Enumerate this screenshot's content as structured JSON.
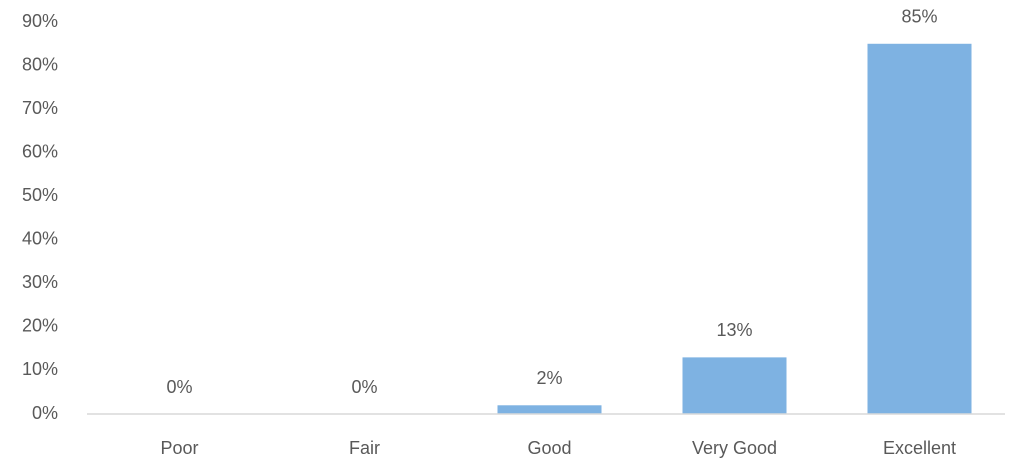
{
  "chart_data": {
    "type": "bar",
    "categories": [
      "Poor",
      "Fair",
      "Good",
      "Very Good",
      "Excellent"
    ],
    "values": [
      0,
      0,
      2,
      13,
      85
    ],
    "value_labels": [
      "0%",
      "0%",
      "2%",
      "13%",
      "85%"
    ],
    "color": "#7eb2e2",
    "ylim": [
      0,
      90
    ],
    "yticks": [
      {
        "value": 0,
        "label": "0%"
      },
      {
        "value": 10,
        "label": "10%"
      },
      {
        "value": 20,
        "label": "20%"
      },
      {
        "value": 30,
        "label": "30%"
      },
      {
        "value": 40,
        "label": "40%"
      },
      {
        "value": 50,
        "label": "50%"
      },
      {
        "value": 60,
        "label": "60%"
      },
      {
        "value": 70,
        "label": "70%"
      },
      {
        "value": 80,
        "label": "80%"
      },
      {
        "value": 90,
        "label": "90%"
      }
    ],
    "grid": false
  }
}
